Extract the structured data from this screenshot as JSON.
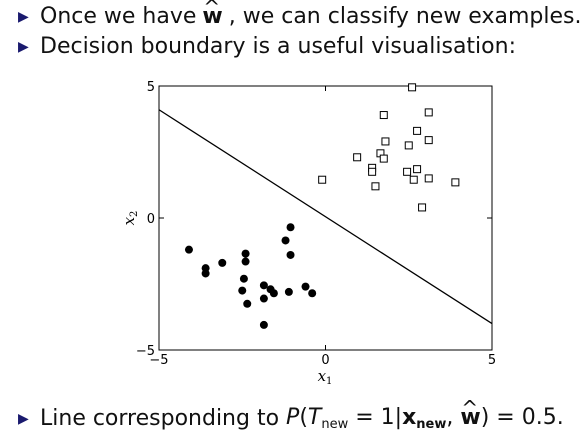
{
  "bullets": [
    {
      "prefix": "Once we have",
      "symbol": "w",
      "suffix": ", we can classify new examples."
    },
    {
      "text": "Decision boundary is a useful visualisation:"
    }
  ],
  "footer_bullet": {
    "prefix": "Line corresponding to",
    "math": {
      "P": "P",
      "open": "(",
      "T": "T",
      "T_sub": "new",
      "eq_one": " = 1|",
      "x": "x",
      "x_sub": "new",
      "comma": ", ",
      "w": "w",
      "close_eq": ") = 0.5."
    }
  },
  "chart_data": {
    "type": "scatter",
    "xlabel": "x1",
    "ylabel": "x2",
    "xlim": [
      -5,
      5
    ],
    "ylim": [
      -5,
      5
    ],
    "xticks": [
      -5,
      0,
      5
    ],
    "yticks": [
      -5,
      0,
      5
    ],
    "grid": false,
    "series": [
      {
        "marker": "filled-circle",
        "color": "#000000",
        "points": [
          [
            -4.1,
            -1.2
          ],
          [
            -3.6,
            -1.9
          ],
          [
            -3.6,
            -2.1
          ],
          [
            -3.1,
            -1.7
          ],
          [
            -2.4,
            -1.35
          ],
          [
            -2.4,
            -1.65
          ],
          [
            -2.45,
            -2.3
          ],
          [
            -2.5,
            -2.75
          ],
          [
            -2.35,
            -3.25
          ],
          [
            -1.85,
            -2.55
          ],
          [
            -1.65,
            -2.7
          ],
          [
            -1.55,
            -2.85
          ],
          [
            -1.85,
            -3.05
          ],
          [
            -1.85,
            -4.05
          ],
          [
            -1.2,
            -0.85
          ],
          [
            -1.05,
            -0.35
          ],
          [
            -1.05,
            -1.4
          ],
          [
            -1.1,
            -2.8
          ],
          [
            -0.6,
            -2.6
          ],
          [
            -0.4,
            -2.85
          ]
        ]
      },
      {
        "marker": "open-square",
        "color": "#000000",
        "points": [
          [
            2.6,
            4.95
          ],
          [
            3.1,
            4.0
          ],
          [
            1.75,
            3.9
          ],
          [
            2.75,
            3.3
          ],
          [
            1.8,
            2.9
          ],
          [
            3.1,
            2.95
          ],
          [
            2.5,
            2.75
          ],
          [
            1.65,
            2.45
          ],
          [
            1.75,
            2.25
          ],
          [
            0.95,
            2.3
          ],
          [
            1.4,
            1.9
          ],
          [
            1.4,
            1.75
          ],
          [
            2.75,
            1.85
          ],
          [
            2.45,
            1.75
          ],
          [
            -0.1,
            1.45
          ],
          [
            1.5,
            1.2
          ],
          [
            2.65,
            1.45
          ],
          [
            3.1,
            1.5
          ],
          [
            3.9,
            1.35
          ],
          [
            2.9,
            0.4
          ]
        ]
      }
    ],
    "boundary_line": {
      "from": [
        -5,
        4.1
      ],
      "to": [
        5,
        -4.0
      ]
    }
  }
}
